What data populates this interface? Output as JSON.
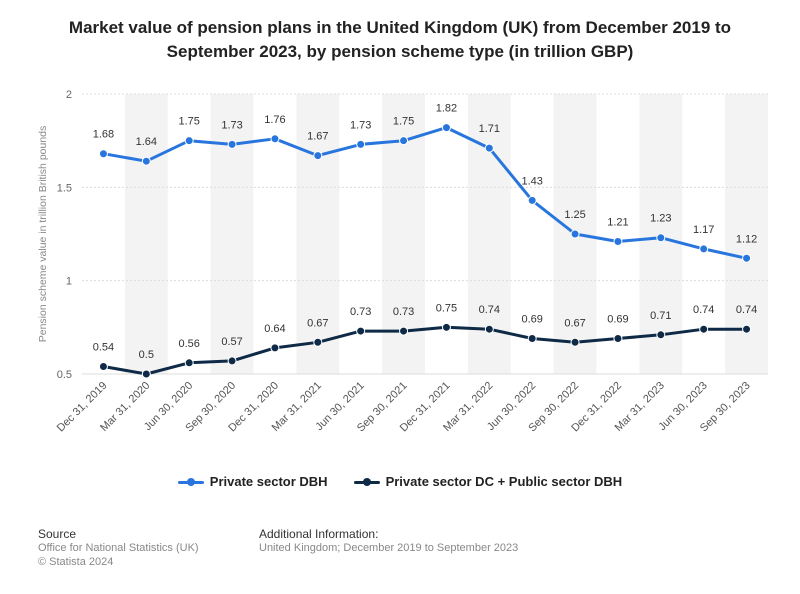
{
  "title": "Market value of pension plans in the United Kingdom (UK) from December 2019 to September 2023, by pension scheme type (in trillion GBP)",
  "chart_data": {
    "type": "line",
    "categories": [
      "Dec 31, 2019",
      "Mar 31, 2020",
      "Jun 30, 2020",
      "Sep 30, 2020",
      "Dec 31, 2020",
      "Mar 31, 2021",
      "Jun 30, 2021",
      "Sep 30, 2021",
      "Dec 31, 2021",
      "Mar 31, 2022",
      "Jun 30, 2022",
      "Sep 30, 2022",
      "Dec 31, 2022",
      "Mar 31, 2023",
      "Jun 30, 2023",
      "Sep 30, 2023"
    ],
    "series": [
      {
        "name": "Private sector DBH",
        "color": "#2876dd",
        "values": [
          1.68,
          1.64,
          1.75,
          1.73,
          1.76,
          1.67,
          1.73,
          1.75,
          1.82,
          1.71,
          1.43,
          1.25,
          1.21,
          1.23,
          1.17,
          1.12
        ],
        "labels": [
          "1.68",
          "1.64",
          "1.75",
          "1.73",
          "1.76",
          "1.67",
          "1.73",
          "1.75",
          "1.82",
          "1.71",
          "1.43",
          "1.25",
          "1.21",
          "1.23",
          "1.17",
          "1.12"
        ]
      },
      {
        "name": "Private sector DC + Public sector DBH",
        "color": "#0e2a47",
        "values": [
          0.54,
          0.5,
          0.56,
          0.57,
          0.64,
          0.67,
          0.73,
          0.73,
          0.75,
          0.74,
          0.69,
          0.67,
          0.69,
          0.71,
          0.74,
          0.74
        ],
        "labels": [
          "0.54",
          "0.5",
          "0.56",
          "0.57",
          "0.64",
          "0.67",
          "0.73",
          "0.73",
          "0.75",
          "0.74",
          "0.69",
          "0.67",
          "0.69",
          "0.71",
          "0.74",
          "0.74"
        ]
      }
    ],
    "ylabel": "Pension scheme value in trillion British pounds",
    "ylim": [
      0.5,
      2
    ],
    "yticks": [
      "0.5",
      "1",
      "1.5",
      "2"
    ],
    "grid": true,
    "legend_position": "bottom"
  },
  "footer": {
    "source_heading": "Source",
    "source_line1": "Office for National Statistics (UK)",
    "source_line2": "© Statista 2024",
    "info_heading": "Additional Information:",
    "info_line1": "United Kingdom; December 2019 to September 2023"
  }
}
